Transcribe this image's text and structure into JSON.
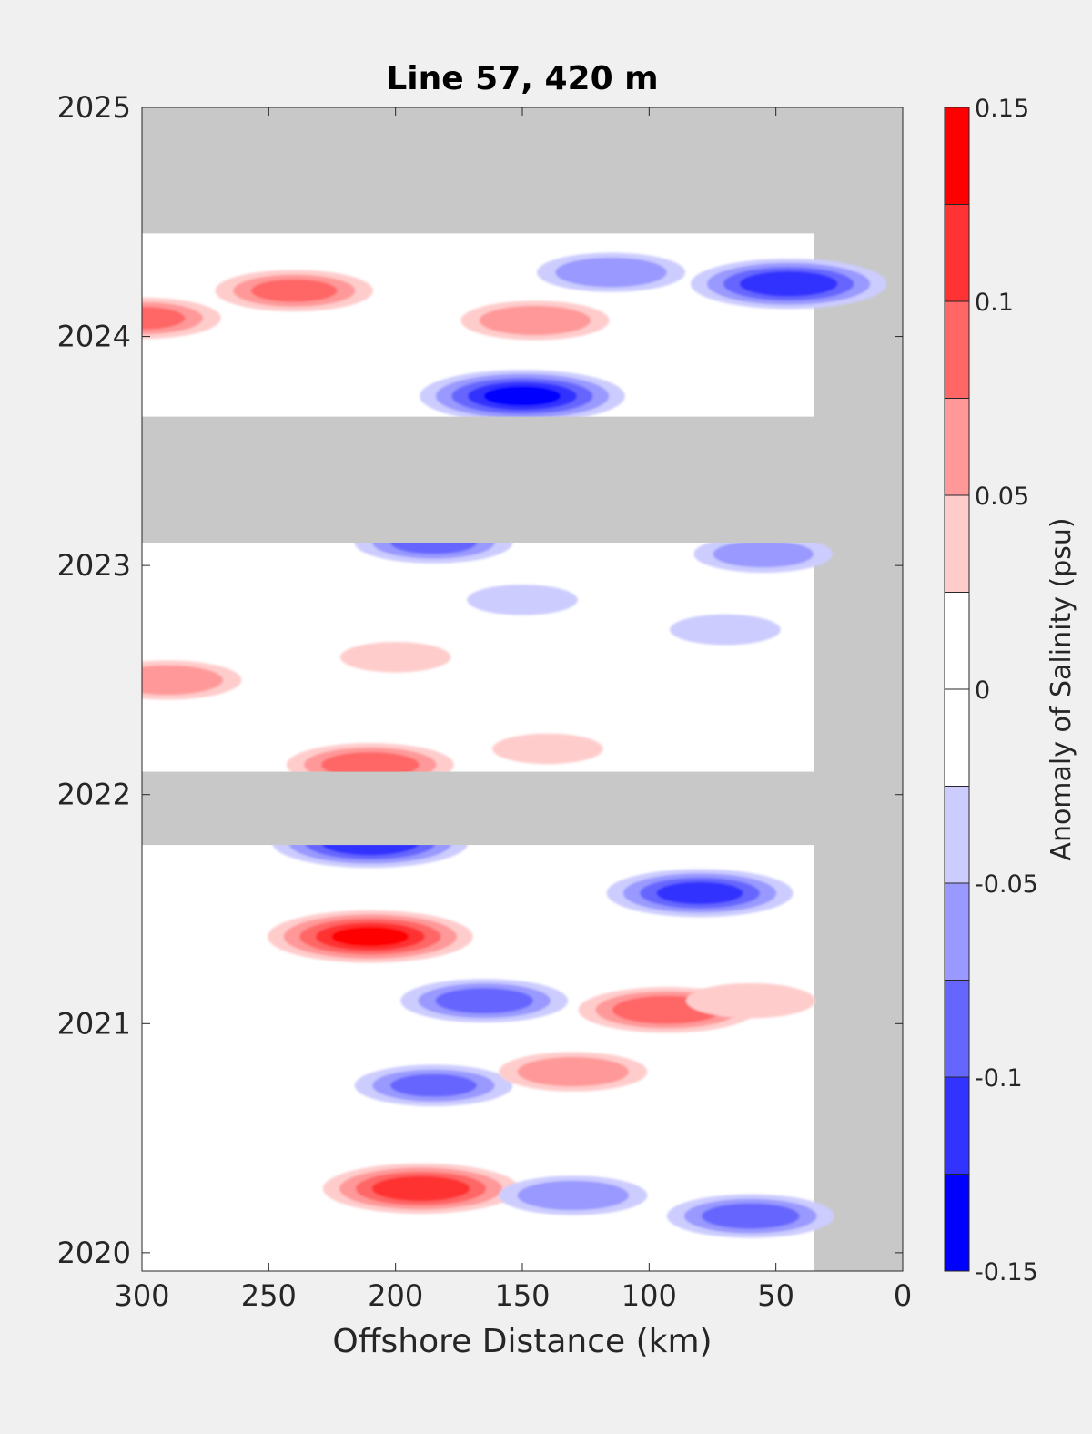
{
  "chart_data": {
    "type": "heatmap",
    "title": "Line 57, 420 m",
    "xlabel": "Offshore Distance (km)",
    "ylabel": "",
    "xlim": [
      300,
      0
    ],
    "ylim": [
      2019.92,
      2025
    ],
    "x_reversed": true,
    "x_ticks": [
      300,
      250,
      200,
      150,
      100,
      50,
      0
    ],
    "y_ticks": [
      2020,
      2021,
      2022,
      2023,
      2024,
      2025
    ],
    "colorbar": {
      "label": "Anomaly of Salinity (psu)",
      "range": [
        -0.15,
        0.15
      ],
      "levels": [
        -0.15,
        -0.125,
        -0.1,
        -0.075,
        -0.05,
        -0.025,
        0,
        0.025,
        0.05,
        0.075,
        0.1,
        0.125,
        0.15
      ],
      "tick_values": [
        0.15,
        0.1,
        0.05,
        0,
        -0.05,
        -0.1,
        -0.15
      ],
      "tick_labels": [
        "0.15",
        "0.1",
        "0.05",
        "0",
        "-0.05",
        "-0.1",
        "-0.15"
      ],
      "colors": [
        "#0000ff",
        "#3333ff",
        "#6666ff",
        "#9999ff",
        "#ccccff",
        "#ffffff",
        "#ffffff",
        "#ffcccc",
        "#ff9999",
        "#ff6666",
        "#ff3333",
        "#ff0000"
      ]
    },
    "missing_color": "#c8c8c8",
    "data_coverage_x": [
      300,
      35
    ],
    "missing_bands_time": [
      [
        2024.45,
        2025
      ],
      [
        2023.1,
        2023.65
      ],
      [
        2021.78,
        2022.1
      ]
    ],
    "features": [
      {
        "x": 210,
        "y": 2021.38,
        "value": 0.14
      },
      {
        "x": 190,
        "y": 2020.28,
        "value": 0.13
      },
      {
        "x": 93,
        "y": 2021.06,
        "value": 0.11
      },
      {
        "x": 240,
        "y": 2024.2,
        "value": 0.09
      },
      {
        "x": 300,
        "y": 2024.08,
        "value": 0.09
      },
      {
        "x": 210,
        "y": 2022.13,
        "value": 0.1
      },
      {
        "x": 290,
        "y": 2022.5,
        "value": 0.08
      },
      {
        "x": 150,
        "y": 2023.74,
        "value": -0.14
      },
      {
        "x": 45,
        "y": 2024.23,
        "value": -0.13
      },
      {
        "x": 80,
        "y": 2021.57,
        "value": -0.12
      },
      {
        "x": 165,
        "y": 2021.1,
        "value": -0.1
      },
      {
        "x": 210,
        "y": 2021.79,
        "value": -0.13
      },
      {
        "x": 115,
        "y": 2024.28,
        "value": -0.08
      },
      {
        "x": 60,
        "y": 2020.16,
        "value": -0.1
      },
      {
        "x": 185,
        "y": 2020.73,
        "value": -0.09
      },
      {
        "x": 55,
        "y": 2023.05,
        "value": -0.07
      },
      {
        "x": 185,
        "y": 2023.1,
        "value": -0.09
      },
      {
        "x": 130,
        "y": 2020.25,
        "value": -0.08
      },
      {
        "x": 130,
        "y": 2020.79,
        "value": 0.08
      },
      {
        "x": 145,
        "y": 2024.07,
        "value": 0.08
      },
      {
        "x": 200,
        "y": 2022.6,
        "value": 0.04
      },
      {
        "x": 140,
        "y": 2022.2,
        "value": 0.04
      },
      {
        "x": 60,
        "y": 2021.1,
        "value": 0.06
      },
      {
        "x": 150,
        "y": 2022.85,
        "value": -0.04
      },
      {
        "x": 70,
        "y": 2022.72,
        "value": -0.04
      }
    ]
  }
}
